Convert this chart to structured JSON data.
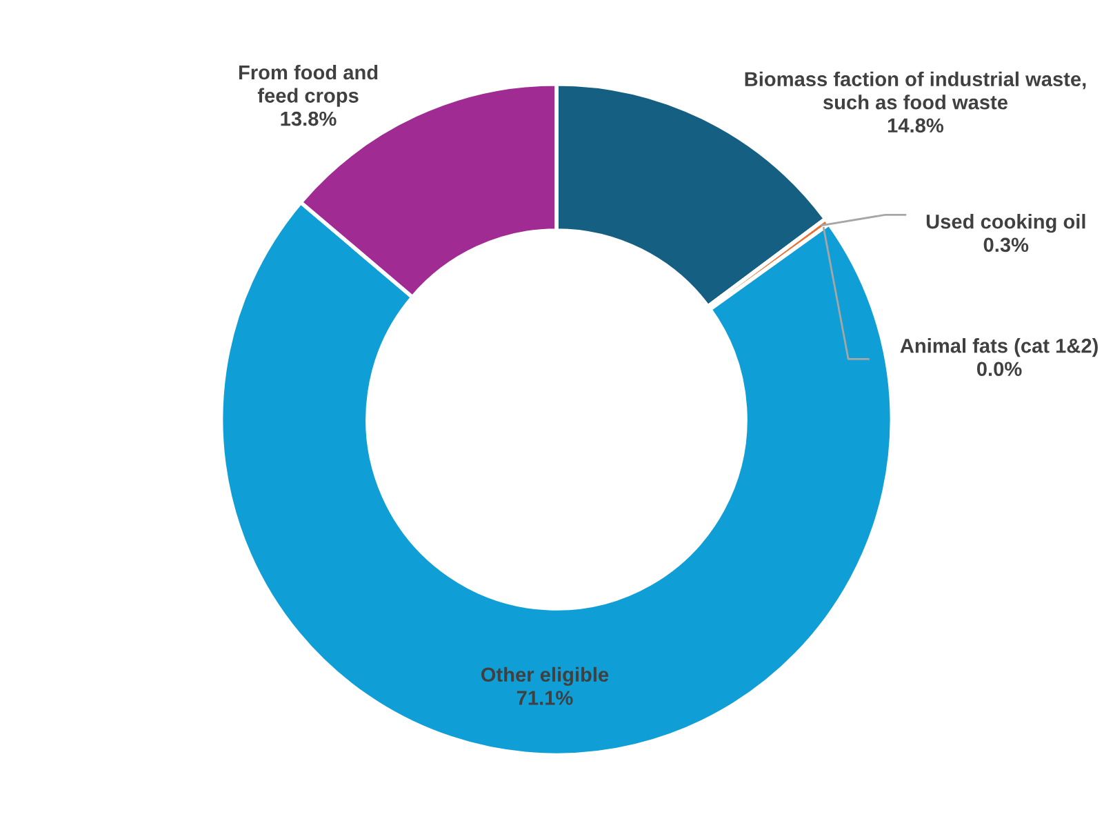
{
  "chart_data": {
    "type": "donut",
    "categories": [
      "Biomass faction of industrial waste,\nsuch as food waste",
      "Used cooking oil",
      "Animal fats (cat 1&2)",
      "Other eligible",
      "From food and\nfeed crops"
    ],
    "values": [
      14.8,
      0.3,
      0.0,
      71.1,
      13.8
    ],
    "colors": [
      "#156082",
      "#e97132",
      "#196b24",
      "#0f9ed5",
      "#a02b93"
    ],
    "value_labels": [
      "14.8%",
      "0.3%",
      "0.0%",
      "71.1%",
      "13.8%"
    ],
    "legend": false
  }
}
